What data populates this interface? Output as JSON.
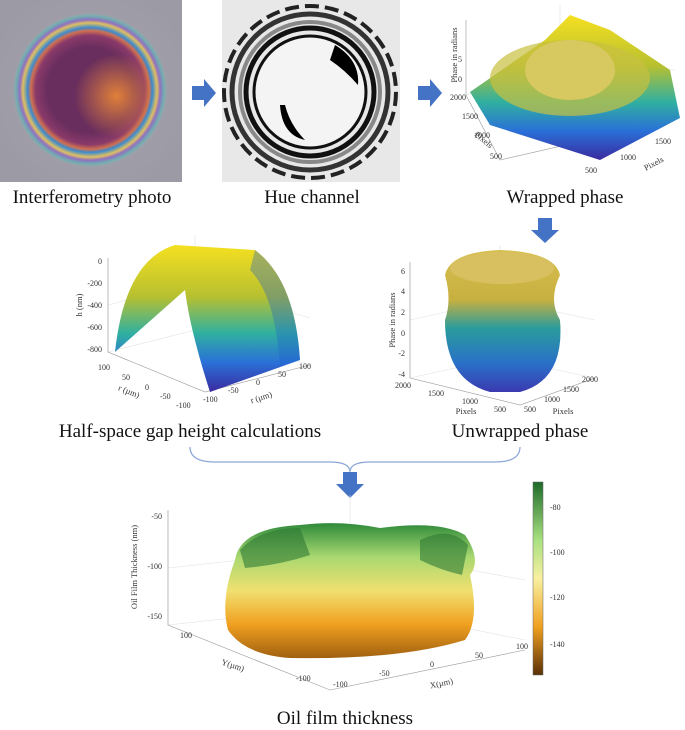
{
  "panels": [
    {
      "label": "Interferometry photo"
    },
    {
      "label": "Hue channel"
    },
    {
      "label": "Wrapped phase",
      "z_axis": "Phase in radians",
      "z_ticks": [
        "5",
        "0"
      ],
      "x_axis": "Pixels",
      "x_ticks": [
        "2000",
        "1500",
        "1000",
        "500"
      ],
      "y_axis": "Pixels",
      "y_ticks": [
        "500",
        "1000",
        "1500"
      ]
    },
    {
      "label": "Half-space gap height calculations",
      "z_axis": "h (nm)",
      "z_ticks": [
        "0",
        "-200",
        "-400",
        "-600",
        "-800"
      ],
      "x_axis": "r (µm)",
      "x_ticks": [
        "100",
        "50",
        "0",
        "-50",
        "-100"
      ],
      "y_axis": "r (µm)",
      "y_ticks": [
        "-100",
        "-50",
        "0",
        "50",
        "100"
      ]
    },
    {
      "label": "Unwrapped phase",
      "z_axis": "Phase in radians",
      "z_ticks": [
        "6",
        "4",
        "2",
        "0",
        "-2",
        "-4"
      ],
      "x_axis": "Pixels",
      "x_ticks": [
        "2000",
        "1500",
        "1000",
        "500"
      ],
      "y_axis": "Pixels",
      "y_ticks": [
        "500",
        "1000",
        "1500",
        "2000"
      ]
    },
    {
      "label": "Oil film thickness",
      "z_axis": "Oil Film Thickness (nm)",
      "z_ticks": [
        "-50",
        "-100",
        "-150"
      ],
      "x_axis": "X(µm)",
      "x_ticks": [
        "-100",
        "-50",
        "0",
        "50",
        "100"
      ],
      "y_axis": "Y(µm)",
      "y_ticks": [
        "100",
        "-100"
      ],
      "colorbar_ticks": [
        "-80",
        "-100",
        "-120",
        "-140"
      ]
    }
  ]
}
